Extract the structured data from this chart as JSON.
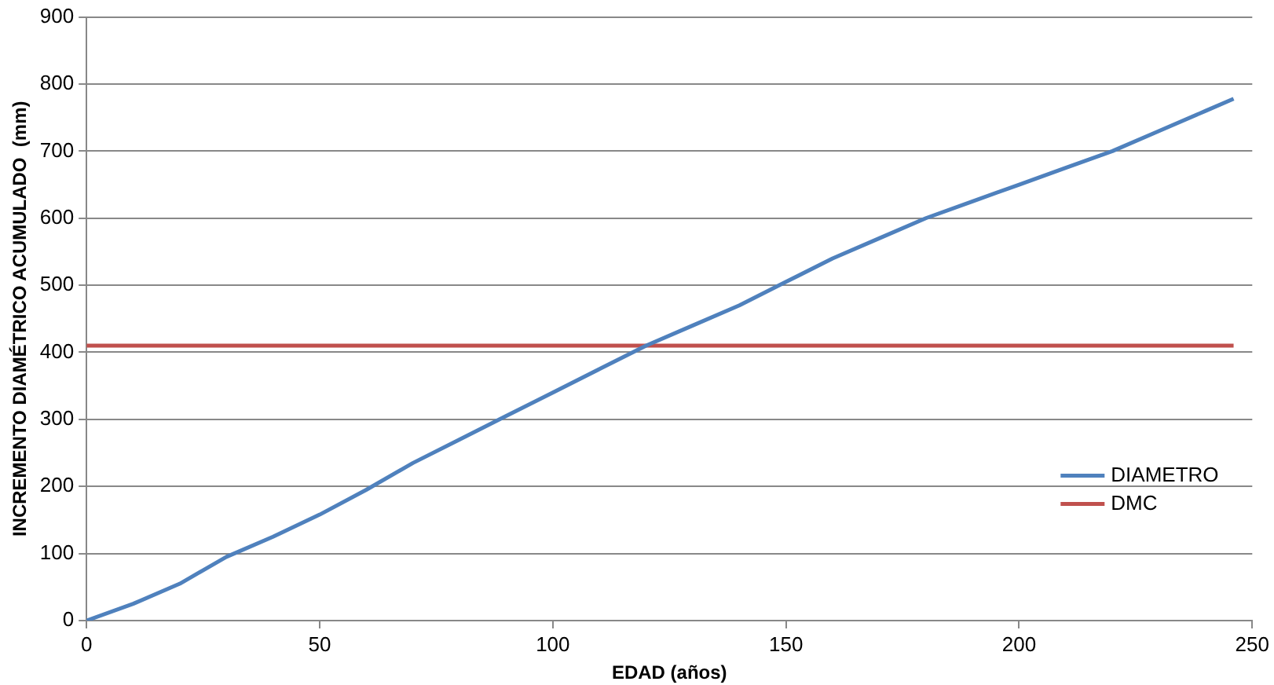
{
  "chart_data": {
    "type": "line",
    "xlabel": "EDAD (años)",
    "ylabel": "INCREMENTO DIAMÉTRICO ACUMULADO  (mm)",
    "xlim": [
      0,
      250
    ],
    "xticks": [
      0,
      50,
      100,
      150,
      200,
      250
    ],
    "ylim": [
      0,
      900
    ],
    "yticks": [
      0,
      100,
      200,
      300,
      400,
      500,
      600,
      700,
      800,
      900
    ],
    "grid": "y",
    "legend": "right",
    "marker": "none",
    "series": [
      {
        "name": "DIAMETRO",
        "color": "#4f81bd",
        "x": [
          0,
          10,
          20,
          30,
          40,
          50,
          60,
          70,
          80,
          90,
          100,
          110,
          120,
          130,
          140,
          150,
          160,
          170,
          180,
          190,
          200,
          210,
          220,
          230,
          240,
          246
        ],
        "values": [
          0,
          25,
          55,
          95,
          125,
          158,
          195,
          235,
          270,
          305,
          340,
          375,
          410,
          440,
          470,
          505,
          540,
          570,
          600,
          625,
          650,
          675,
          700,
          730,
          760,
          778
        ]
      },
      {
        "name": "DMC",
        "color": "#c0504d",
        "x": [
          0,
          246
        ],
        "values": [
          410,
          410
        ]
      }
    ]
  }
}
